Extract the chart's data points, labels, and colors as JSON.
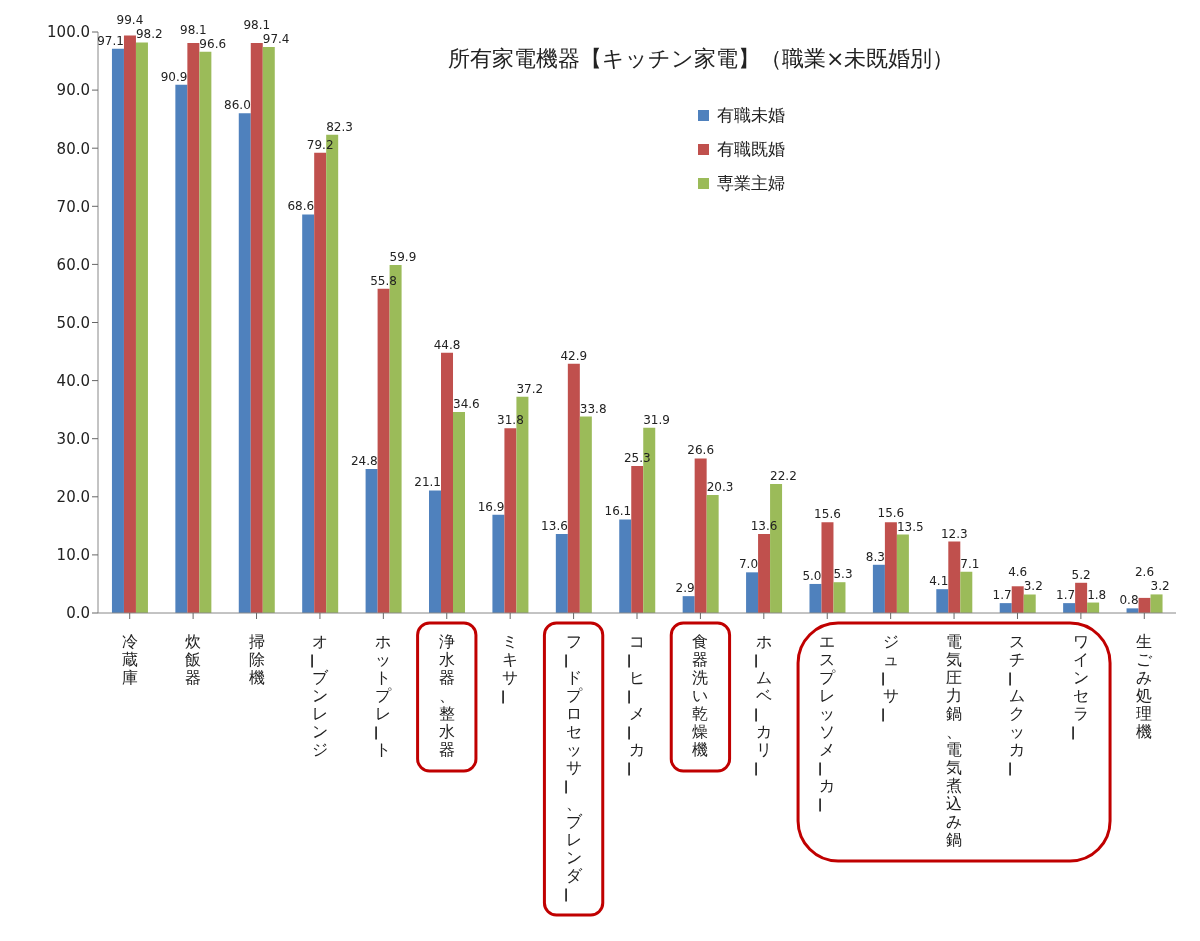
{
  "chart_data": {
    "type": "bar",
    "title": "所有家電機器【キッチン家電】（職業×未既婚別）",
    "categories": [
      "冷蔵庫",
      "炊飯器",
      "掃除機",
      "オーブンレンジ",
      "ホットプレート",
      "浄水器、整水器",
      "ミキサー",
      "フードプロセッサー、ブレンダー",
      "コーヒーメーカー",
      "食器洗い乾燥機",
      "ホームベーカリー",
      "エスプレッソメーカー",
      "ジューサー",
      "電気圧力鍋、電気煮込み鍋",
      "スチームクッカー",
      "ワインセラー",
      "生ごみ処理機"
    ],
    "series": [
      {
        "name": "有職未婚",
        "color": "#4f81bd",
        "values": [
          97.1,
          90.9,
          86.0,
          68.6,
          24.8,
          21.1,
          16.9,
          13.6,
          16.1,
          2.9,
          7.0,
          5.0,
          8.3,
          4.1,
          1.7,
          1.7,
          0.8
        ],
        "value_labels": [
          "97.1",
          "90.9",
          "86.0",
          "68.6",
          "24.8",
          "21.1",
          "16.9",
          "13.6",
          "16.1",
          "2.9",
          "7.0",
          "5.0",
          "8.3",
          "4.1",
          "1.7",
          "1.7",
          "0.8"
        ]
      },
      {
        "name": "有職既婚",
        "color": "#c0504d",
        "values": [
          99.4,
          98.1,
          98.1,
          79.2,
          55.8,
          44.8,
          31.8,
          42.9,
          25.3,
          26.6,
          13.6,
          15.6,
          15.6,
          12.3,
          4.6,
          5.2,
          2.6
        ],
        "value_labels": [
          "99.4",
          "98.1",
          "98.1",
          "79.2",
          "55.8",
          "44.8",
          "31.8",
          "42.9",
          "25.3",
          "26.6",
          "13.6",
          "15.6",
          "15.6",
          "12.3",
          "4.6",
          "5.2",
          "2.6"
        ]
      },
      {
        "name": "専業主婦",
        "color": "#9bbb59",
        "values": [
          98.2,
          96.6,
          97.4,
          82.3,
          59.9,
          34.6,
          37.2,
          33.8,
          31.9,
          20.3,
          22.2,
          5.3,
          13.5,
          7.1,
          3.2,
          1.8,
          3.2
        ],
        "value_labels": [
          "98.2",
          "96.6",
          "97.4",
          "82.3",
          "59.9",
          "34.6",
          "37.2",
          "33.8",
          "31.9",
          "20.3",
          "22.2",
          "5.3",
          "13.5",
          "7.1",
          "3.2",
          "1.8",
          "3.2"
        ]
      }
    ],
    "ylim": [
      0,
      100
    ],
    "yticks": [
      {
        "value": 0,
        "label": "0.0"
      },
      {
        "value": 10,
        "label": "10.0"
      },
      {
        "value": 20,
        "label": "20.0"
      },
      {
        "value": 30,
        "label": "30.0"
      },
      {
        "value": 40,
        "label": "40.0"
      },
      {
        "value": 50,
        "label": "50.0"
      },
      {
        "value": 60,
        "label": "60.0"
      },
      {
        "value": 70,
        "label": "70.0"
      },
      {
        "value": 80,
        "label": "80.0"
      },
      {
        "value": 90,
        "label": "90.0"
      },
      {
        "value": 100,
        "label": "100.0"
      }
    ],
    "grid": false,
    "legend": "top right"
  }
}
